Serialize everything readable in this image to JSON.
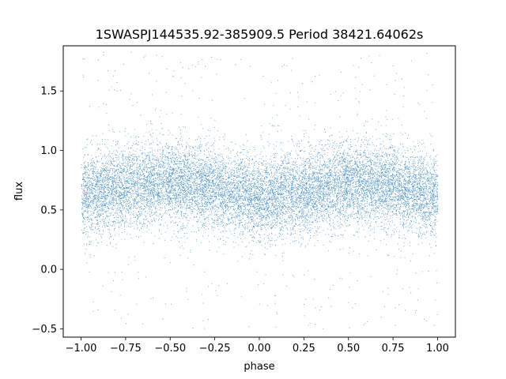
{
  "chart_data": {
    "type": "scatter",
    "title": "1SWASPJ144535.92-385909.5 Period 38421.64062s",
    "xlabel": "phase",
    "ylabel": "flux",
    "xlim": [
      -1.1,
      1.1
    ],
    "ylim": [
      -0.57,
      1.88
    ],
    "x_ticks": [
      -1.0,
      -0.75,
      -0.5,
      -0.25,
      0.0,
      0.25,
      0.5,
      0.75,
      1.0
    ],
    "x_tick_labels": [
      "−1.00",
      "−0.75",
      "−0.50",
      "−0.25",
      "0.00",
      "0.25",
      "0.50",
      "0.75",
      "1.00"
    ],
    "y_ticks": [
      -0.5,
      0.0,
      0.5,
      1.0,
      1.5
    ],
    "y_tick_labels": [
      "−0.5",
      "0.0",
      "0.5",
      "1.0",
      "1.5"
    ],
    "grid": false,
    "point_color": "#1f77b4",
    "series": [
      {
        "x_range": [
          -1.0,
          1.0
        ],
        "y_range": [
          -0.5,
          1.85
        ],
        "approx_point_count": 40000,
        "profile_phase": [
          -1.0,
          -0.75,
          -0.5,
          -0.25,
          0.0,
          0.25,
          0.5,
          0.75,
          1.0
        ],
        "profile_median_flux": [
          0.62,
          0.7,
          0.74,
          0.68,
          0.6,
          0.66,
          0.73,
          0.7,
          0.62
        ],
        "profile_flux_sd": 0.17
      }
    ]
  }
}
